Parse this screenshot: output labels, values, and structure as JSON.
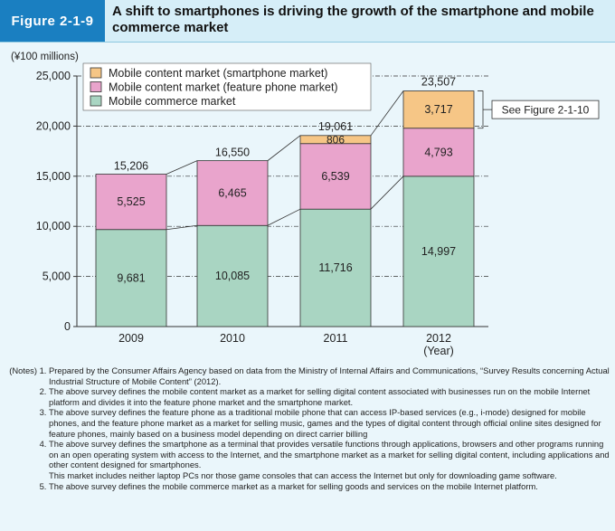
{
  "header": {
    "figure_label": "Figure 2-1-9",
    "title": "A shift to smartphones is driving the growth of the smartphone and mobile commerce market"
  },
  "chart_data": {
    "type": "bar",
    "stacked": true,
    "unit_label": "(¥100 millions)",
    "xlabel": "(Year)",
    "categories": [
      "2009",
      "2010",
      "2011",
      "2012"
    ],
    "ylim": [
      0,
      25000
    ],
    "yticks": [
      0,
      5000,
      10000,
      15000,
      20000,
      25000
    ],
    "ytick_labels": [
      "0",
      "5,000",
      "10,000",
      "15,000",
      "20,000",
      "25,000"
    ],
    "grid": "dash-dot horizontal at each major tick",
    "legend_position": "top-left",
    "series": [
      {
        "name": "Mobile commerce market",
        "color": "#a9d5c2",
        "values": [
          9681,
          10085,
          11716,
          14997
        ],
        "labels": [
          "9,681",
          "10,085",
          "11,716",
          "14,997"
        ]
      },
      {
        "name": "Mobile content market (feature phone market)",
        "color": "#e9a4cc",
        "values": [
          5525,
          6465,
          6539,
          4793
        ],
        "labels": [
          "5,525",
          "6,465",
          "6,539",
          "4,793"
        ]
      },
      {
        "name": "Mobile content market (smartphone market)",
        "color": "#f6c686",
        "values": [
          0,
          0,
          806,
          3717
        ],
        "labels": [
          "",
          "",
          "806",
          "3,717"
        ]
      }
    ],
    "totals": [
      15206,
      16550,
      19061,
      23507
    ],
    "total_labels": [
      "15,206",
      "16,550",
      "19,061",
      "23,507"
    ],
    "legend_order": [
      2,
      1,
      0
    ],
    "annotation": "See Figure 2-1-10"
  },
  "notes": {
    "lead": "(Notes)",
    "items": [
      {
        "num": "1.",
        "text": "Prepared by the Consumer Affairs Agency based on data from the Ministry of Internal Affairs and Communications, “Survey Results concerning Actual Industrial Structure of Mobile Content” (2012)."
      },
      {
        "num": "2.",
        "text": "The above survey defines the mobile content market as a market for selling digital content associated with businesses run on the mobile Internet platform and divides it into the feature phone market and the smartphone market."
      },
      {
        "num": "3.",
        "text": "The above survey defines the feature phone as a traditional mobile phone that can access IP-based services (e.g., i-mode) designed for mobile phones, and the feature phone market as a market for selling music, games and the types of digital content through official online sites designed for feature phones, mainly based on a business model depending on direct carrier billing"
      },
      {
        "num": "4.",
        "text": "The above survey defines the smartphone as a terminal that provides versatile functions through applications, browsers and other programs running on an open operating system with access to the Internet, and the smartphone market as a market for selling digital content, including applications and other content designed for smartphones.",
        "extra": "This market includes neither laptop PCs nor those game consoles that can access the Internet but only for downloading game software."
      },
      {
        "num": "5.",
        "text": "The above survey defines the mobile commerce market as a market for selling goods and services on the mobile Internet platform."
      }
    ]
  }
}
